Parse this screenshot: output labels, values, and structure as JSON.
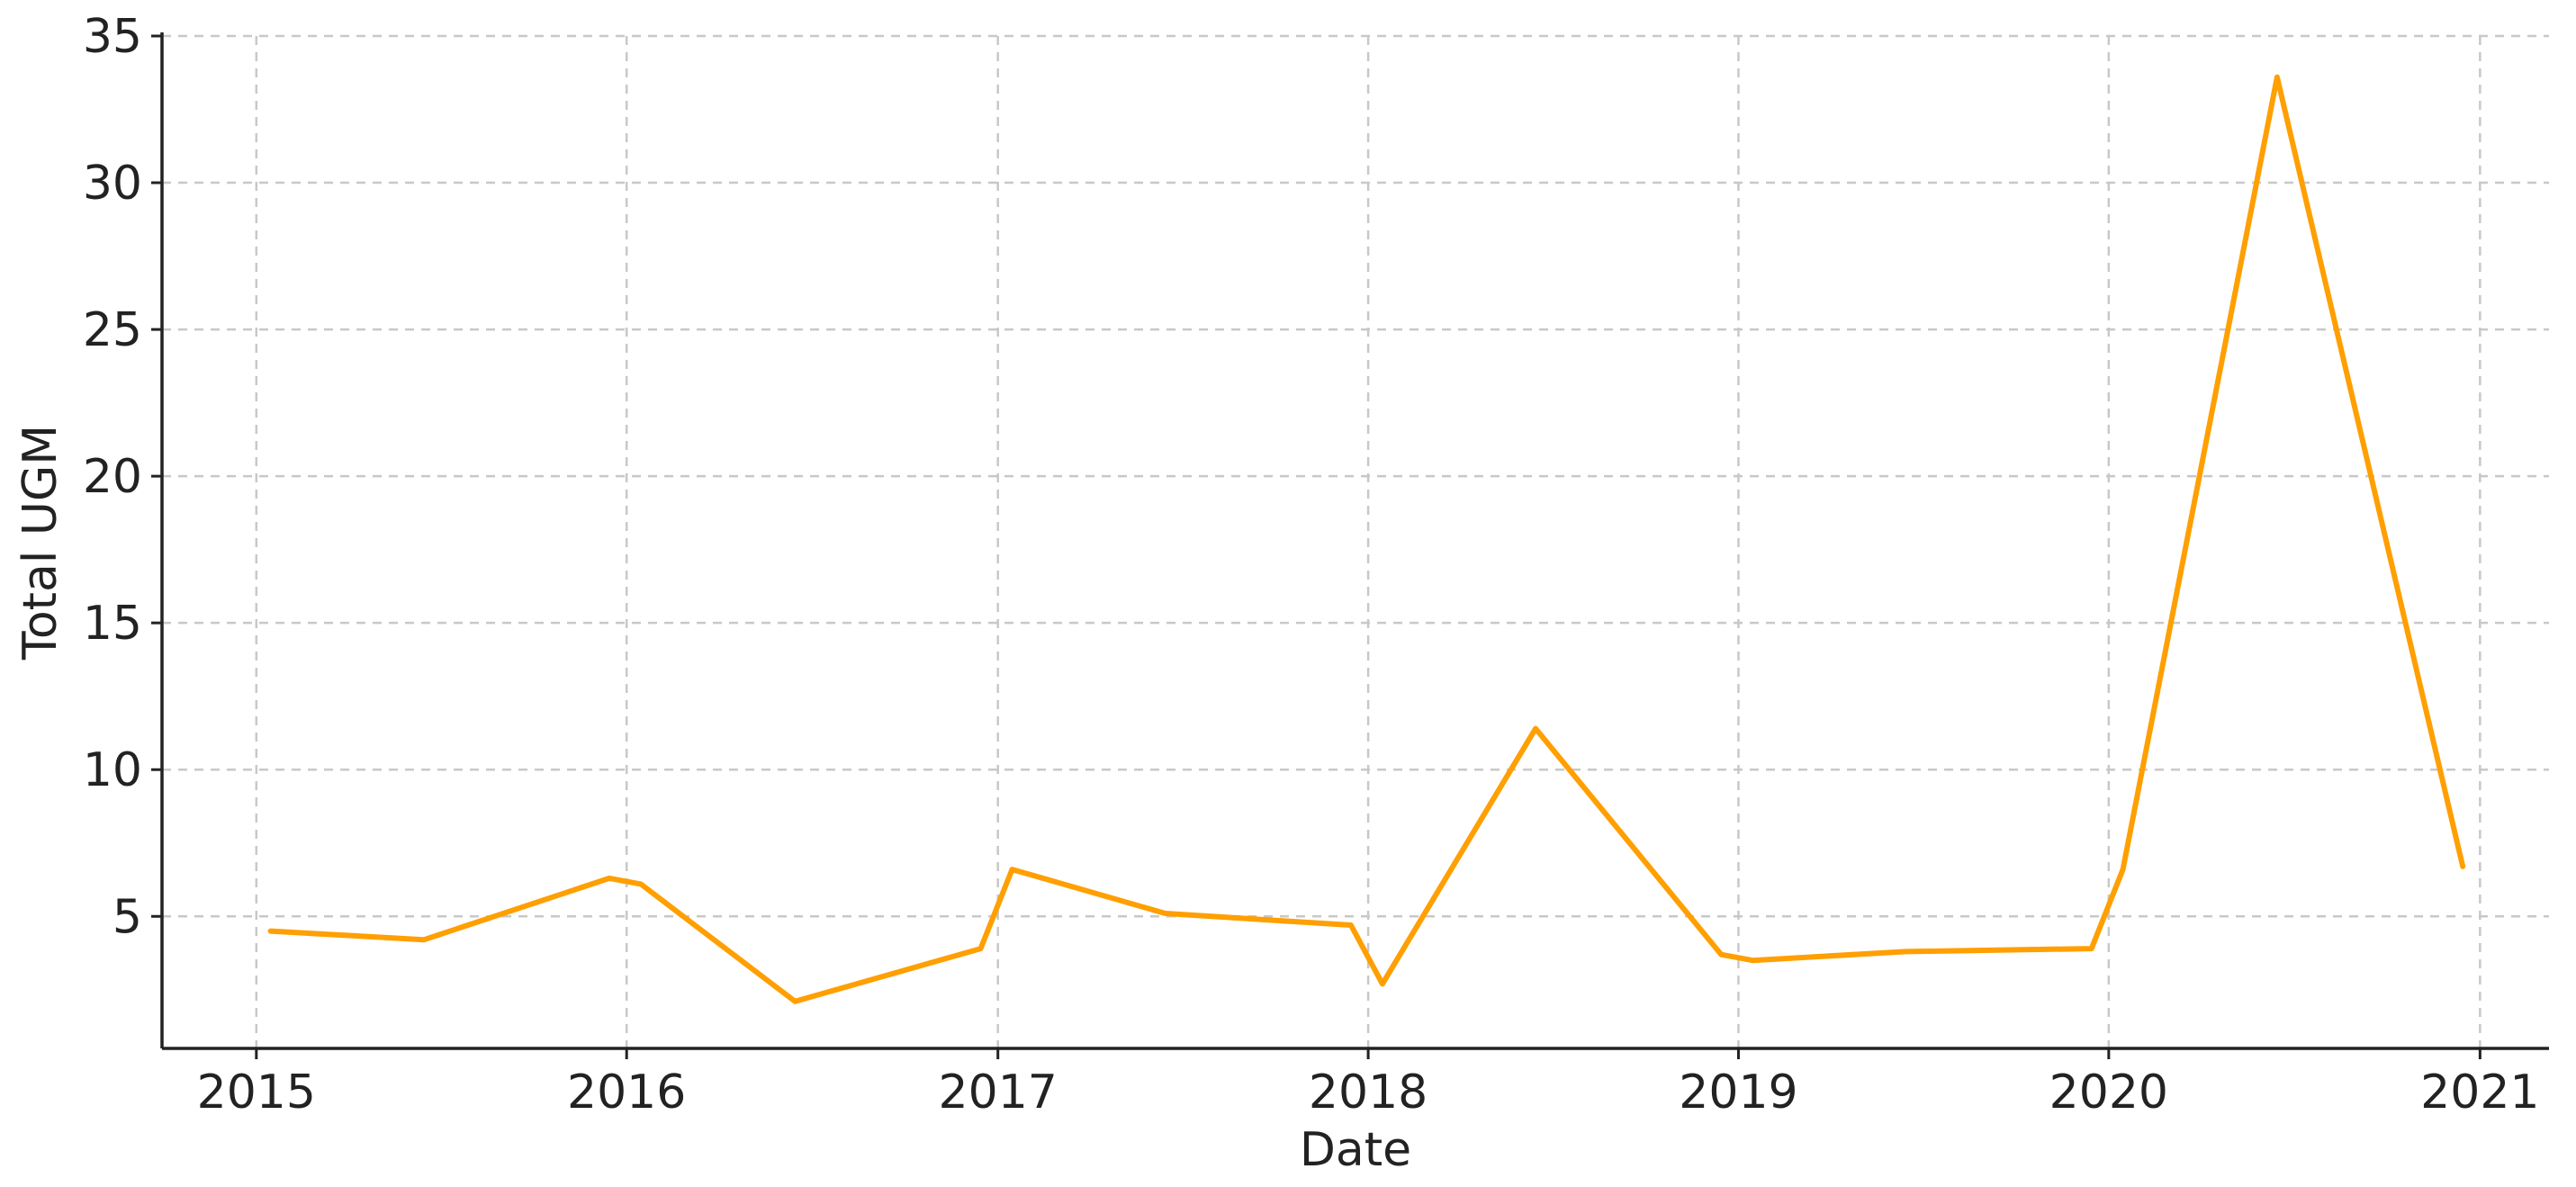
{
  "chart_data": {
    "type": "line",
    "xlabel": "Date",
    "ylabel": "Total UGM",
    "xlim": [
      "2014-09-30",
      "2021-03-10"
    ],
    "ylim": [
      0.5,
      35
    ],
    "x_ticks": [
      "2015",
      "2016",
      "2017",
      "2018",
      "2019",
      "2020",
      "2021"
    ],
    "y_ticks": [
      5,
      10,
      15,
      20,
      25,
      30,
      35
    ],
    "grid": true,
    "legend": "none",
    "colors": {
      "series": "#ff9f00",
      "axis": "#222222",
      "grid": "#c8c8c8"
    },
    "series": [
      {
        "x": [
          "2015-01-15",
          "2015-06-15",
          "2015-12-15",
          "2016-01-15",
          "2016-06-15",
          "2016-12-15",
          "2017-01-15",
          "2017-06-15",
          "2017-12-15",
          "2018-01-15",
          "2018-06-15",
          "2018-12-15",
          "2019-01-15",
          "2019-06-15",
          "2019-12-15",
          "2020-01-15",
          "2020-06-15",
          "2020-12-15"
        ],
        "values": [
          4.5,
          4.2,
          6.3,
          6.1,
          2.1,
          3.9,
          6.6,
          5.1,
          4.7,
          2.7,
          11.4,
          3.7,
          3.5,
          3.8,
          3.9,
          6.6,
          33.6,
          6.7
        ]
      }
    ]
  }
}
